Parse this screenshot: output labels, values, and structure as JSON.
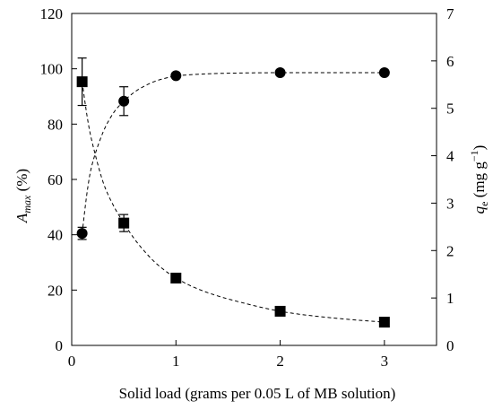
{
  "chart_data": {
    "type": "scatter",
    "title": "",
    "xlabel": "Solid load (grams per 0.05 L of MB solution)",
    "ylabel_left": {
      "main": "A",
      "sub": "max",
      "suffix": " (%)"
    },
    "ylabel_right": {
      "main": "q",
      "sub": "e",
      "suffix": " (mg g",
      "sup": "−1",
      "close": ")"
    },
    "xlim": [
      0,
      3.5
    ],
    "ylim_left": [
      0,
      120
    ],
    "ylim_right": [
      0,
      7
    ],
    "x_ticks": [
      0,
      1,
      2,
      3
    ],
    "y_left_ticks": [
      0,
      20,
      40,
      60,
      80,
      100,
      120
    ],
    "y_right_ticks": [
      0,
      1,
      2,
      3,
      4,
      5,
      6,
      7
    ],
    "grid": false,
    "series": [
      {
        "marker": "circle",
        "axis": "left",
        "x": [
          0.1,
          0.5,
          1,
          2,
          3
        ],
        "y": [
          40.5,
          88.3,
          97.5,
          98.6,
          98.6
        ],
        "err": [
          2.2,
          5.2,
          0,
          0,
          0
        ],
        "fit_x": [
          0.1,
          0.15,
          0.2,
          0.3,
          0.4,
          0.5,
          0.6,
          0.7,
          0.8,
          0.9,
          1.0,
          1.2,
          1.5,
          2.0,
          2.5,
          3.0
        ],
        "fit_y": [
          40.5,
          56,
          66,
          77,
          84,
          88.3,
          91.5,
          93.8,
          95.5,
          96.6,
          97.4,
          98.0,
          98.4,
          98.6,
          98.6,
          98.6
        ]
      },
      {
        "marker": "square",
        "axis": "right",
        "x": [
          0.1,
          0.5,
          1,
          2,
          3
        ],
        "y": [
          5.56,
          2.58,
          1.42,
          0.72,
          0.49
        ],
        "err": [
          0.5,
          0.18,
          0,
          0,
          0
        ],
        "fit_x": [
          0.1,
          0.15,
          0.2,
          0.3,
          0.4,
          0.5,
          0.6,
          0.7,
          0.8,
          0.9,
          1.0,
          1.2,
          1.5,
          2.0,
          2.5,
          3.0
        ],
        "fit_y": [
          5.56,
          4.8,
          4.25,
          3.45,
          2.95,
          2.58,
          2.25,
          1.98,
          1.75,
          1.57,
          1.42,
          1.2,
          0.98,
          0.72,
          0.58,
          0.49
        ]
      }
    ]
  }
}
